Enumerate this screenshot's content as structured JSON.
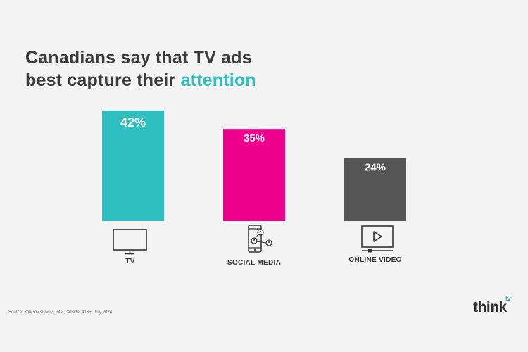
{
  "title": {
    "line1": "Canadians say that TV ads",
    "line2_prefix": "best capture their ",
    "line2_highlight": "attention"
  },
  "colors": {
    "tv": "#2fbfc0",
    "social": "#ec008c",
    "video": "#555555",
    "highlight": "#2fbfc0"
  },
  "chart_data": {
    "type": "bar",
    "categories": [
      "TV",
      "SOCIAL MEDIA",
      "ONLINE VIDEO"
    ],
    "values": [
      42,
      35,
      24
    ],
    "data_labels": [
      "42%",
      "35%",
      "24%"
    ],
    "ylim": [
      0,
      42
    ],
    "grid": false,
    "icons": [
      "tv-icon",
      "smartphone-social-icon",
      "video-player-icon"
    ]
  },
  "source": "Source: YouGov survey, Total Canada, A18+, July 2024",
  "logo": {
    "text": "think",
    "superscript": "tv"
  }
}
